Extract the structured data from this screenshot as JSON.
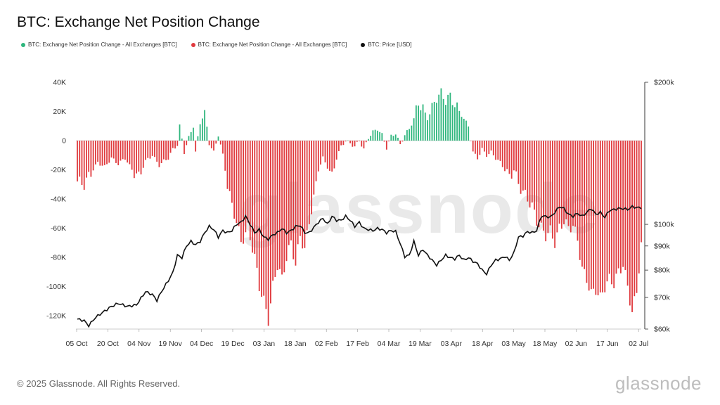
{
  "title": "BTC: Exchange Net Position Change",
  "legend": {
    "pos_label": "BTC: Exchange Net Position Change - All Exchanges [BTC]",
    "neg_label": "BTC: Exchange Net Position Change - All Exchanges [BTC]",
    "price_label": "BTC: Price [USD]"
  },
  "footer": "© 2025 Glassnode. All Rights Reserved.",
  "brand": "glassnode",
  "watermark": "glassnode",
  "colors": {
    "positive": "#2eb67d",
    "negative": "#e03a3e",
    "price": "#111111"
  },
  "chart_data": {
    "type": "bar",
    "left_axis": {
      "ticks": [
        "40K",
        "20K",
        "0",
        "-20K",
        "-40K",
        "-60K",
        "-80K",
        "-100K",
        "-120K"
      ],
      "values": [
        40000,
        20000,
        0,
        -20000,
        -40000,
        -60000,
        -80000,
        -100000,
        -120000
      ],
      "ylim": [
        -128000,
        40000
      ]
    },
    "right_axis": {
      "ticks": [
        "$200k",
        "$100k",
        "$90k",
        "$80k",
        "$70k",
        "$60k"
      ],
      "values": [
        200000,
        100000,
        90000,
        80000,
        70000,
        60000
      ],
      "scale": "log",
      "ylim": [
        60000,
        200000
      ]
    },
    "x_ticks": [
      "05 Oct",
      "20 Oct",
      "04 Nov",
      "19 Nov",
      "04 Dec",
      "19 Dec",
      "03 Jan",
      "18 Jan",
      "02 Feb",
      "17 Feb",
      "04 Mar",
      "19 Mar",
      "03 Apr",
      "18 Apr",
      "03 May",
      "18 May",
      "02 Jun",
      "17 Jun",
      "02 Jul"
    ],
    "net_position_keypoints": [
      [
        0,
        -28000
      ],
      [
        3,
        -30000
      ],
      [
        6,
        -22000
      ],
      [
        9,
        -15000
      ],
      [
        12,
        -18000
      ],
      [
        15,
        -12000
      ],
      [
        18,
        -16000
      ],
      [
        21,
        -12000
      ],
      [
        24,
        -20000
      ],
      [
        27,
        -25000
      ],
      [
        30,
        -14000
      ],
      [
        33,
        -10000
      ],
      [
        36,
        -17000
      ],
      [
        38,
        -14000
      ],
      [
        40,
        -12000
      ],
      [
        42,
        -6000
      ],
      [
        44,
        -3000
      ],
      [
        45,
        10000
      ],
      [
        47,
        -8000
      ],
      [
        49,
        2000
      ],
      [
        51,
        10000
      ],
      [
        52,
        -8000
      ],
      [
        54,
        12000
      ],
      [
        56,
        20000
      ],
      [
        58,
        -2000
      ],
      [
        60,
        -8000
      ],
      [
        62,
        4000
      ],
      [
        64,
        -10000
      ],
      [
        66,
        -30000
      ],
      [
        68,
        -45000
      ],
      [
        70,
        -55000
      ],
      [
        72,
        -70000
      ],
      [
        75,
        -60000
      ],
      [
        78,
        -80000
      ],
      [
        80,
        -100000
      ],
      [
        82,
        -110000
      ],
      [
        84,
        -123000
      ],
      [
        86,
        -100000
      ],
      [
        88,
        -85000
      ],
      [
        90,
        -95000
      ],
      [
        92,
        -80000
      ],
      [
        94,
        -70000
      ],
      [
        96,
        -85000
      ],
      [
        98,
        -65000
      ],
      [
        100,
        -75000
      ],
      [
        102,
        -55000
      ],
      [
        104,
        -40000
      ],
      [
        106,
        -20000
      ],
      [
        108,
        -12000
      ],
      [
        110,
        -18000
      ],
      [
        112,
        -25000
      ],
      [
        114,
        -12000
      ],
      [
        116,
        -4000
      ],
      [
        118,
        0
      ],
      [
        120,
        -2000
      ],
      [
        122,
        -4000
      ],
      [
        124,
        0
      ],
      [
        126,
        -6000
      ],
      [
        128,
        2000
      ],
      [
        130,
        6000
      ],
      [
        132,
        8000
      ],
      [
        134,
        4000
      ],
      [
        136,
        -5000
      ],
      [
        138,
        3000
      ],
      [
        140,
        5000
      ],
      [
        142,
        -3000
      ],
      [
        144,
        4000
      ],
      [
        146,
        8000
      ],
      [
        148,
        15000
      ],
      [
        150,
        26000
      ],
      [
        152,
        22000
      ],
      [
        154,
        15000
      ],
      [
        156,
        22000
      ],
      [
        158,
        30000
      ],
      [
        160,
        32000
      ],
      [
        162,
        28000
      ],
      [
        164,
        30000
      ],
      [
        166,
        25000
      ],
      [
        168,
        20000
      ],
      [
        170,
        15000
      ],
      [
        172,
        10000
      ],
      [
        174,
        -8000
      ],
      [
        176,
        -12000
      ],
      [
        178,
        -6000
      ],
      [
        180,
        -10000
      ],
      [
        182,
        -8000
      ],
      [
        184,
        -12000
      ],
      [
        186,
        -15000
      ],
      [
        188,
        -20000
      ],
      [
        190,
        -25000
      ],
      [
        192,
        -20000
      ],
      [
        194,
        -30000
      ],
      [
        196,
        -35000
      ],
      [
        198,
        -40000
      ],
      [
        200,
        -45000
      ],
      [
        202,
        -55000
      ],
      [
        204,
        -60000
      ],
      [
        206,
        -65000
      ],
      [
        208,
        -62000
      ],
      [
        210,
        -70000
      ],
      [
        212,
        -60000
      ],
      [
        214,
        -55000
      ],
      [
        216,
        -60000
      ],
      [
        218,
        -58000
      ],
      [
        220,
        -68000
      ],
      [
        222,
        -88000
      ],
      [
        224,
        -95000
      ],
      [
        226,
        -105000
      ],
      [
        228,
        -102000
      ],
      [
        230,
        -108000
      ],
      [
        232,
        -100000
      ],
      [
        234,
        -95000
      ],
      [
        236,
        -98000
      ],
      [
        238,
        -90000
      ],
      [
        240,
        -85000
      ],
      [
        242,
        -100000
      ],
      [
        244,
        -118000
      ],
      [
        246,
        -103000
      ],
      [
        248,
        -72000
      ]
    ],
    "price_keypoints": [
      [
        0,
        63000
      ],
      [
        3,
        62500
      ],
      [
        5,
        61000
      ],
      [
        8,
        63500
      ],
      [
        12,
        65500
      ],
      [
        15,
        67000
      ],
      [
        18,
        68000
      ],
      [
        22,
        67000
      ],
      [
        26,
        67500
      ],
      [
        30,
        72000
      ],
      [
        33,
        71000
      ],
      [
        35,
        69000
      ],
      [
        37,
        72000
      ],
      [
        40,
        76000
      ],
      [
        42,
        79000
      ],
      [
        44,
        86000
      ],
      [
        46,
        85000
      ],
      [
        48,
        90000
      ],
      [
        50,
        92000
      ],
      [
        52,
        90500
      ],
      [
        54,
        92000
      ],
      [
        56,
        96000
      ],
      [
        58,
        99000
      ],
      [
        60,
        97500
      ],
      [
        62,
        94000
      ],
      [
        64,
        97000
      ],
      [
        66,
        96000
      ],
      [
        68,
        97000
      ],
      [
        70,
        100000
      ],
      [
        72,
        101000
      ],
      [
        74,
        104000
      ],
      [
        76,
        100000
      ],
      [
        78,
        96000
      ],
      [
        80,
        97500
      ],
      [
        82,
        94000
      ],
      [
        84,
        93000
      ],
      [
        86,
        95000
      ],
      [
        88,
        96000
      ],
      [
        90,
        98000
      ],
      [
        92,
        96000
      ],
      [
        94,
        97000
      ],
      [
        96,
        99000
      ],
      [
        98,
        99500
      ],
      [
        100,
        96000
      ],
      [
        102,
        96000
      ],
      [
        104,
        98500
      ],
      [
        106,
        101000
      ],
      [
        108,
        103000
      ],
      [
        110,
        100000
      ],
      [
        112,
        104000
      ],
      [
        114,
        102000
      ],
      [
        116,
        102000
      ],
      [
        118,
        104000
      ],
      [
        120,
        102000
      ],
      [
        122,
        99000
      ],
      [
        124,
        101000
      ],
      [
        126,
        98000
      ],
      [
        128,
        97500
      ],
      [
        130,
        97000
      ],
      [
        132,
        98000
      ],
      [
        134,
        97500
      ],
      [
        136,
        96000
      ],
      [
        138,
        97000
      ],
      [
        140,
        96500
      ],
      [
        142,
        91000
      ],
      [
        144,
        85500
      ],
      [
        146,
        86000
      ],
      [
        148,
        92000
      ],
      [
        150,
        86000
      ],
      [
        152,
        88500
      ],
      [
        154,
        86000
      ],
      [
        156,
        84000
      ],
      [
        158,
        82000
      ],
      [
        160,
        84000
      ],
      [
        162,
        86000
      ],
      [
        164,
        85000
      ],
      [
        166,
        84500
      ],
      [
        168,
        86000
      ],
      [
        170,
        84000
      ],
      [
        172,
        85000
      ],
      [
        174,
        83500
      ],
      [
        176,
        82500
      ],
      [
        178,
        80000
      ],
      [
        180,
        78500
      ],
      [
        182,
        82000
      ],
      [
        184,
        84000
      ],
      [
        186,
        84500
      ],
      [
        188,
        85500
      ],
      [
        190,
        84000
      ],
      [
        192,
        87000
      ],
      [
        194,
        94000
      ],
      [
        196,
        94500
      ],
      [
        198,
        96500
      ],
      [
        200,
        96000
      ],
      [
        202,
        97000
      ],
      [
        204,
        104000
      ],
      [
        206,
        104000
      ],
      [
        208,
        103500
      ],
      [
        210,
        106000
      ],
      [
        212,
        109000
      ],
      [
        214,
        108000
      ],
      [
        216,
        105000
      ],
      [
        218,
        104000
      ],
      [
        220,
        105500
      ],
      [
        222,
        104000
      ],
      [
        224,
        106000
      ],
      [
        226,
        108000
      ],
      [
        228,
        105000
      ],
      [
        230,
        106000
      ],
      [
        232,
        103500
      ],
      [
        234,
        107000
      ],
      [
        236,
        107500
      ],
      [
        238,
        108000
      ],
      [
        240,
        108000
      ],
      [
        242,
        107500
      ],
      [
        244,
        109000
      ],
      [
        246,
        108500
      ]
    ]
  }
}
